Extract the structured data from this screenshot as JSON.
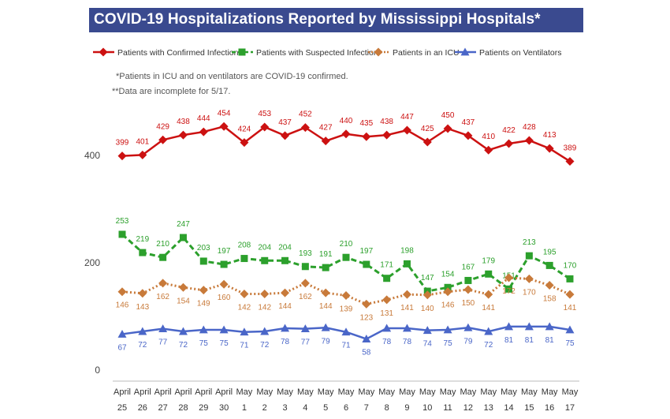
{
  "page": {
    "title": "COVID-19 Hospitalizations Reported by Mississippi Hospitals*",
    "notes": [
      "*Patients in ICU and on ventilators are COVID-19 confirmed.",
      "**Data are incomplete for 5/17."
    ]
  },
  "chart_data": {
    "type": "line",
    "x_tick_labels": [
      [
        "April",
        "25"
      ],
      [
        "April",
        "26"
      ],
      [
        "April",
        "27"
      ],
      [
        "April",
        "28"
      ],
      [
        "April",
        "29"
      ],
      [
        "April",
        "30"
      ],
      [
        "May",
        "1"
      ],
      [
        "May",
        "2"
      ],
      [
        "May",
        "3"
      ],
      [
        "May",
        "4"
      ],
      [
        "May",
        "5"
      ],
      [
        "May",
        "6"
      ],
      [
        "May",
        "7"
      ],
      [
        "May",
        "8"
      ],
      [
        "May",
        "9"
      ],
      [
        "May",
        "10"
      ],
      [
        "May",
        "11"
      ],
      [
        "May",
        "12"
      ],
      [
        "May",
        "13"
      ],
      [
        "May",
        "14"
      ],
      [
        "May",
        "15"
      ],
      [
        "May",
        "16"
      ],
      [
        "May",
        "17"
      ]
    ],
    "x": [
      "April 25",
      "April 26",
      "April 27",
      "April 28",
      "April 29",
      "April 30",
      "May 1",
      "May 2",
      "May 3",
      "May 4",
      "May 5",
      "May 6",
      "May 7",
      "May 8",
      "May 9",
      "May 10",
      "May 11",
      "May 12",
      "May 13",
      "May 14",
      "May 15",
      "May 16",
      "May 17"
    ],
    "y_ticks": [
      0,
      200,
      400
    ],
    "ylim": [
      0,
      460
    ],
    "grid": false,
    "legend_position": "top",
    "series": [
      {
        "name": "Patients with Confirmed Infection",
        "color": "#cc1111",
        "line_style": "solid",
        "marker": "diamond",
        "label_position": "above",
        "values": [
          399,
          401,
          429,
          438,
          444,
          454,
          424,
          453,
          437,
          452,
          427,
          440,
          435,
          438,
          447,
          425,
          450,
          437,
          410,
          422,
          428,
          413,
          389
        ]
      },
      {
        "name": "Patients with Suspected Infection",
        "color": "#2ca02c",
        "line_style": "dashed",
        "marker": "square",
        "label_position": "above",
        "values": [
          253,
          219,
          210,
          247,
          203,
          197,
          208,
          204,
          204,
          193,
          191,
          210,
          197,
          171,
          198,
          147,
          154,
          167,
          179,
          151,
          213,
          195,
          170
        ]
      },
      {
        "name": "Patients in an ICU",
        "color": "#c87a3a",
        "line_style": "dotted",
        "marker": "diamond",
        "label_position": "below",
        "values": [
          146,
          143,
          162,
          154,
          149,
          160,
          142,
          142,
          144,
          162,
          144,
          139,
          123,
          131,
          141,
          140,
          146,
          150,
          141,
          172,
          170,
          158,
          141
        ]
      },
      {
        "name": "Patients on Ventilators",
        "color": "#4a66c8",
        "line_style": "solid",
        "marker": "triangle",
        "label_position": "below",
        "values": [
          67,
          72,
          77,
          72,
          75,
          75,
          71,
          72,
          78,
          77,
          79,
          71,
          58,
          78,
          78,
          74,
          75,
          79,
          72,
          81,
          81,
          81,
          75
        ]
      }
    ]
  }
}
